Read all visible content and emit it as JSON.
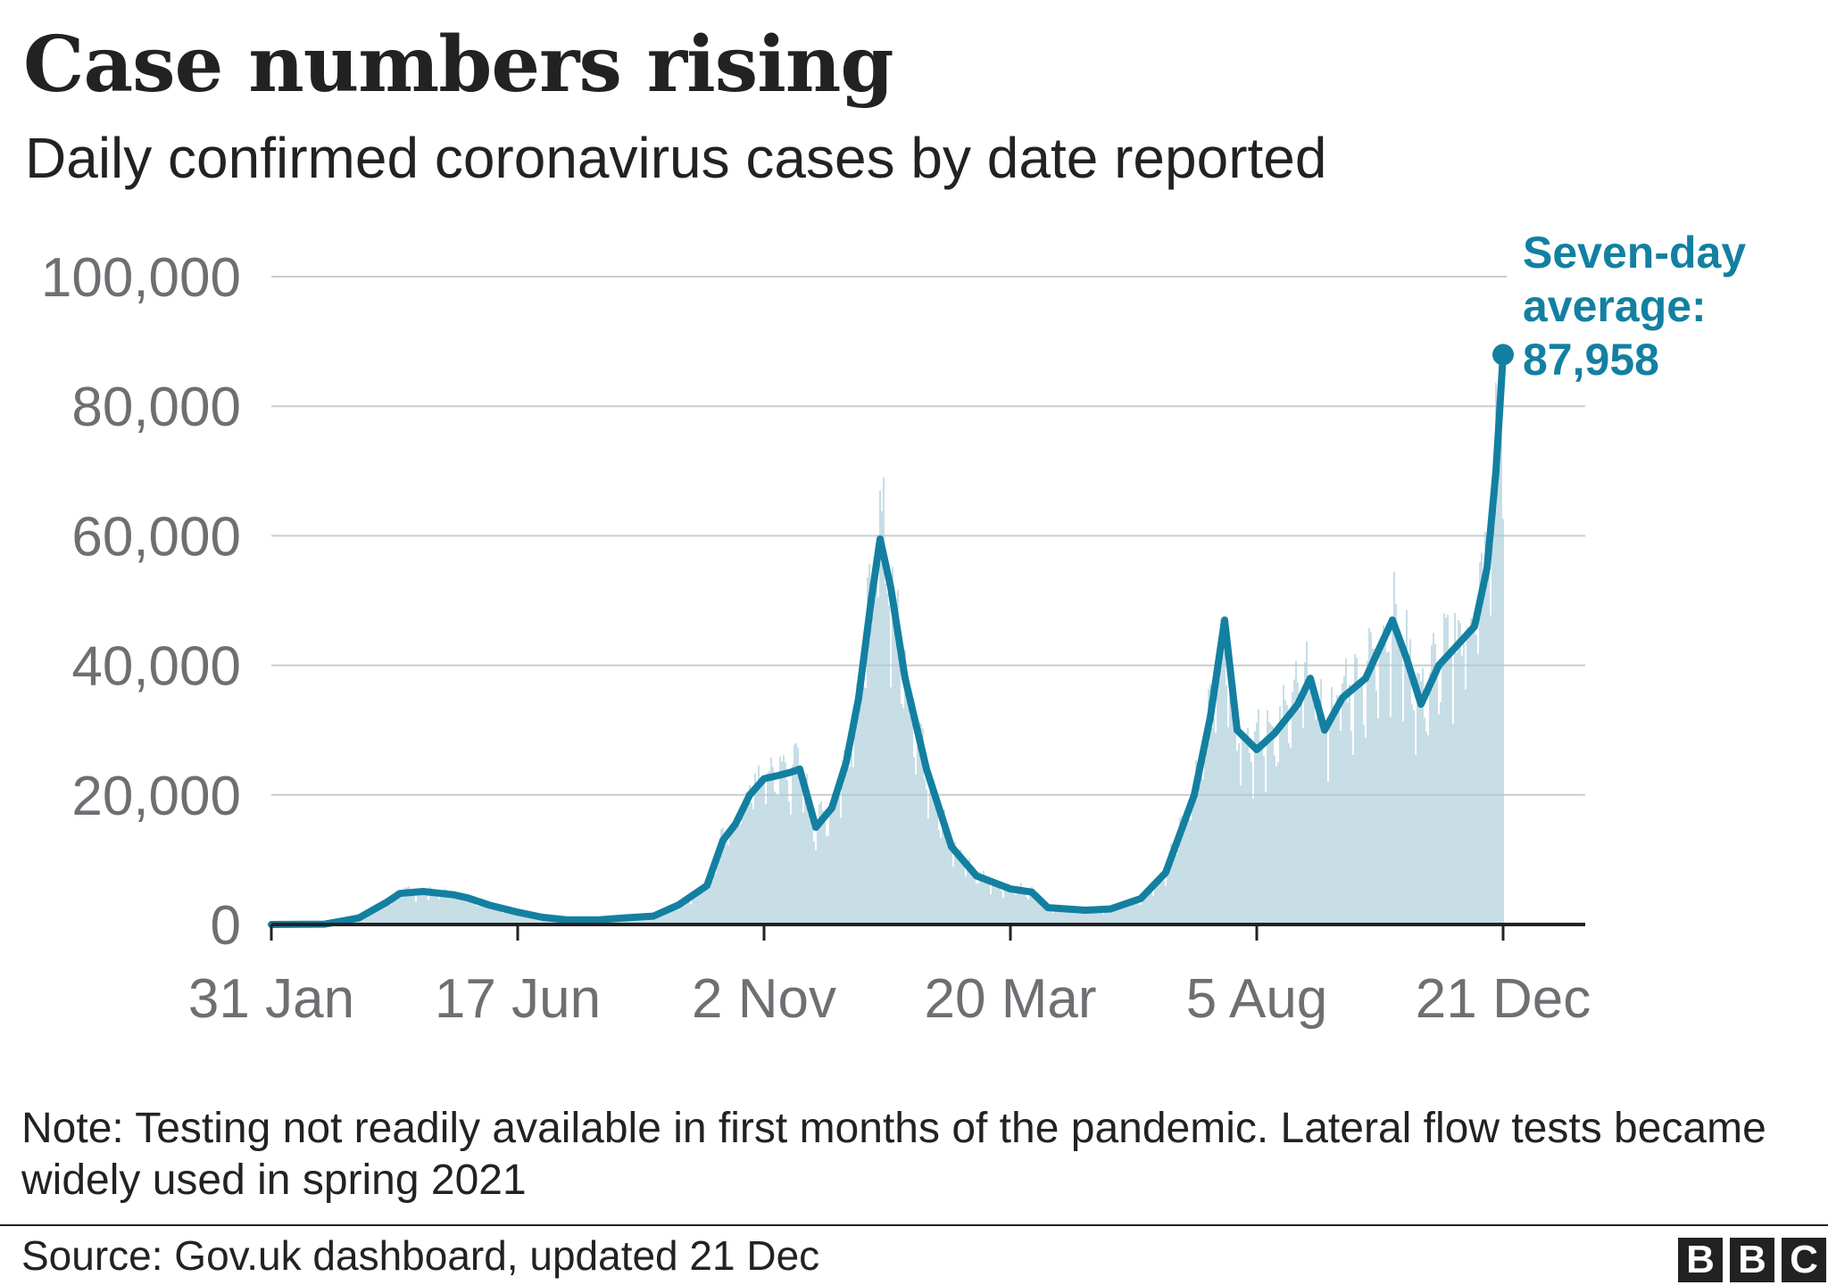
{
  "title": "Case numbers rising",
  "subtitle": "Daily confirmed coronavirus cases by date reported",
  "note": "Note: Testing not readily available in first months of the pandemic. Lateral flow tests became widely used in spring 2021",
  "source": "Source: Gov.uk dashboard, updated 21 Dec",
  "logo": [
    "B",
    "B",
    "C"
  ],
  "colors": {
    "line": "#1380A1",
    "bars": "#A9CBD8",
    "grid": "#CCCCCC",
    "axis": "#222222",
    "tick_text": "#6E6E73"
  },
  "chart_data": {
    "type": "line",
    "title": "Case numbers rising",
    "subtitle": "Daily confirmed coronavirus cases by date reported",
    "ylim": [
      0,
      100000
    ],
    "y_ticks": [
      0,
      20000,
      40000,
      60000,
      80000,
      100000
    ],
    "y_tick_labels": [
      "0",
      "20,000",
      "40,000",
      "60,000",
      "80,000",
      "100,000"
    ],
    "x_ticks": [
      "2020-01-31",
      "2020-06-17",
      "2020-11-02",
      "2021-03-20",
      "2021-08-05",
      "2021-12-21"
    ],
    "x_tick_labels": [
      "31 Jan",
      "17 Jun",
      "2 Nov",
      "20 Mar",
      "5 Aug",
      "21 Dec"
    ],
    "grid": true,
    "series": [
      {
        "name": "Seven-day average",
        "kind": "line",
        "points": [
          [
            "2020-01-31",
            0
          ],
          [
            "2020-03-01",
            50
          ],
          [
            "2020-03-20",
            1000
          ],
          [
            "2020-04-05",
            3500
          ],
          [
            "2020-04-12",
            4800
          ],
          [
            "2020-04-25",
            5100
          ],
          [
            "2020-05-05",
            4800
          ],
          [
            "2020-05-12",
            4600
          ],
          [
            "2020-05-20",
            4100
          ],
          [
            "2020-06-01",
            3000
          ],
          [
            "2020-06-17",
            1900
          ],
          [
            "2020-07-01",
            1100
          ],
          [
            "2020-07-15",
            700
          ],
          [
            "2020-08-01",
            700
          ],
          [
            "2020-08-15",
            1000
          ],
          [
            "2020-09-01",
            1300
          ],
          [
            "2020-09-15",
            3000
          ],
          [
            "2020-10-01",
            6000
          ],
          [
            "2020-10-10",
            13000
          ],
          [
            "2020-10-17",
            15500
          ],
          [
            "2020-10-25",
            20000
          ],
          [
            "2020-11-02",
            22500
          ],
          [
            "2020-11-10",
            23000
          ],
          [
            "2020-11-17",
            23500
          ],
          [
            "2020-11-22",
            24000
          ],
          [
            "2020-12-01",
            15000
          ],
          [
            "2020-12-10",
            18000
          ],
          [
            "2020-12-18",
            25000
          ],
          [
            "2020-12-25",
            35000
          ],
          [
            "2021-01-01",
            50000
          ],
          [
            "2021-01-06",
            59500
          ],
          [
            "2021-01-12",
            52000
          ],
          [
            "2021-01-20",
            38000
          ],
          [
            "2021-02-01",
            24000
          ],
          [
            "2021-02-15",
            12000
          ],
          [
            "2021-03-01",
            7500
          ],
          [
            "2021-03-20",
            5500
          ],
          [
            "2021-04-01",
            5000
          ],
          [
            "2021-04-10",
            2600
          ],
          [
            "2021-05-01",
            2200
          ],
          [
            "2021-05-15",
            2400
          ],
          [
            "2021-06-01",
            4000
          ],
          [
            "2021-06-15",
            8000
          ],
          [
            "2021-07-01",
            20000
          ],
          [
            "2021-07-10",
            32000
          ],
          [
            "2021-07-18",
            47000
          ],
          [
            "2021-07-25",
            30000
          ],
          [
            "2021-08-05",
            27000
          ],
          [
            "2021-08-15",
            29500
          ],
          [
            "2021-08-28",
            34000
          ],
          [
            "2021-09-04",
            38000
          ],
          [
            "2021-09-12",
            30000
          ],
          [
            "2021-09-22",
            35000
          ],
          [
            "2021-10-05",
            38000
          ],
          [
            "2021-10-20",
            47000
          ],
          [
            "2021-10-28",
            41000
          ],
          [
            "2021-11-05",
            34000
          ],
          [
            "2021-11-15",
            40000
          ],
          [
            "2021-11-25",
            43000
          ],
          [
            "2021-12-05",
            46000
          ],
          [
            "2021-12-12",
            55000
          ],
          [
            "2021-12-17",
            70000
          ],
          [
            "2021-12-21",
            87958
          ]
        ]
      },
      {
        "name": "Daily confirmed cases",
        "kind": "bars",
        "points": "daily values shown as thin bars around the seven-day average"
      }
    ],
    "annotations": [
      {
        "date": "2021-12-21",
        "value": 87958,
        "lines": [
          "Seven-day",
          "average:",
          "87,958"
        ]
      }
    ]
  }
}
